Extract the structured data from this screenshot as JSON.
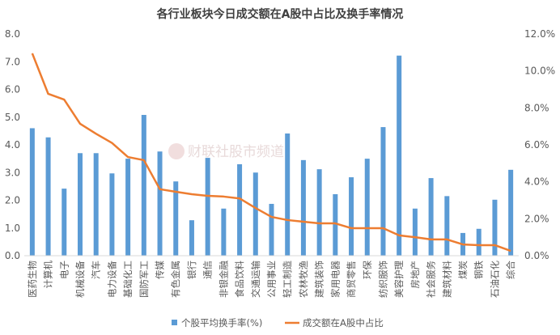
{
  "chart_data": {
    "type": "bar+line",
    "title": "各行业板块今日成交额在A股中占比及换手率情况",
    "categories": [
      "医药生物",
      "计算机",
      "电子",
      "机械设备",
      "汽车",
      "电力设备",
      "基础化工",
      "国防军工",
      "传媒",
      "有色金属",
      "银行",
      "通信",
      "非银金融",
      "食品饮料",
      "交通运输",
      "公用事业",
      "轻工制造",
      "农林牧渔",
      "建筑装饰",
      "家用电器",
      "商贸零售",
      "环保",
      "纺织服饰",
      "美容护理",
      "房地产",
      "社会服务",
      "建筑材料",
      "煤炭",
      "钢铁",
      "石油石化",
      "综合"
    ],
    "series": [
      {
        "name": "个股平均换手率(%)",
        "type": "bar",
        "axis": "left",
        "color": "#5B9BD5",
        "values": [
          4.6,
          4.27,
          2.42,
          3.7,
          3.7,
          2.97,
          3.5,
          5.08,
          3.76,
          2.68,
          1.28,
          3.53,
          1.7,
          3.3,
          3.0,
          1.87,
          4.41,
          3.45,
          3.12,
          2.22,
          2.83,
          3.5,
          4.64,
          7.22,
          1.7,
          2.8,
          2.15,
          0.82,
          0.97,
          2.02,
          3.1
        ]
      },
      {
        "name": "成交额在A股中占比",
        "type": "line",
        "axis": "right",
        "color": "#ED7D31",
        "values": [
          10.95,
          8.76,
          8.45,
          7.14,
          6.6,
          6.1,
          5.34,
          5.17,
          3.6,
          3.46,
          3.33,
          3.24,
          3.2,
          3.1,
          2.58,
          2.1,
          1.93,
          1.84,
          1.75,
          1.75,
          1.49,
          1.49,
          1.49,
          1.1,
          1.0,
          0.88,
          0.88,
          0.61,
          0.57,
          0.57,
          0.26
        ]
      }
    ],
    "left_axis": {
      "ylim": [
        0,
        8
      ],
      "ticks": [
        "0.0",
        "1.0",
        "2.0",
        "3.0",
        "4.0",
        "5.0",
        "6.0",
        "7.0",
        "8.0"
      ]
    },
    "right_axis": {
      "ylim": [
        0,
        12
      ],
      "ticks": [
        "0.0%",
        "2.0%",
        "4.0%",
        "6.0%",
        "8.0%",
        "10.0%",
        "12.0%"
      ]
    },
    "legend": {
      "position": "bottom",
      "items": [
        "个股平均换手率(%)",
        "成交额在A股中占比"
      ]
    },
    "grid": false
  },
  "watermark": "财联社股市频道"
}
